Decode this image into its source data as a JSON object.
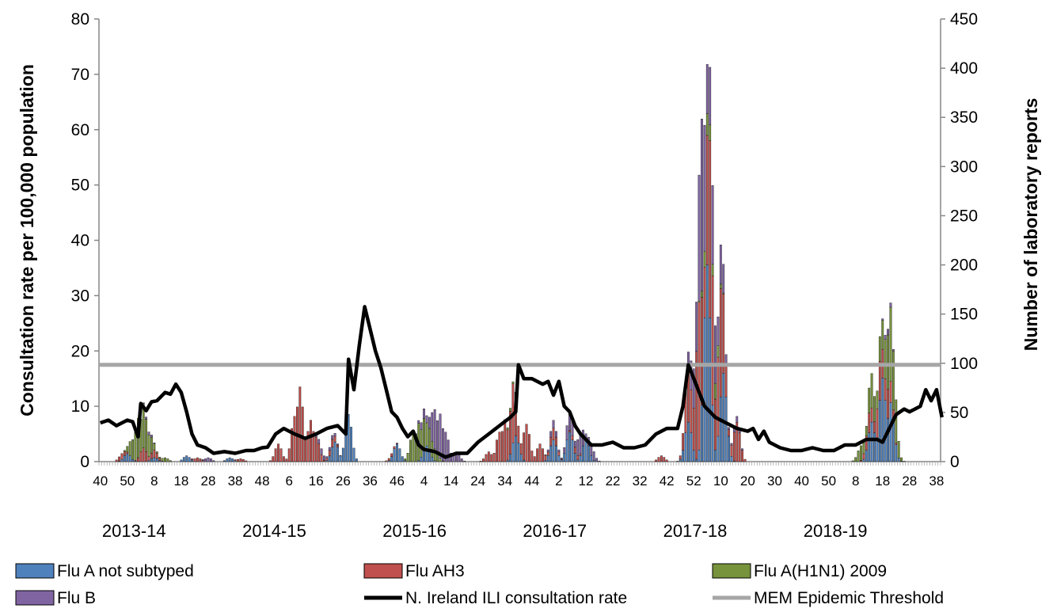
{
  "chart_data": {
    "type": "bar",
    "title": "",
    "ylabel_left": "Consultation rate per 100,000 population",
    "ylabel_right": "Number of laboratory reports",
    "y_left_range": [
      0,
      80
    ],
    "y_left_ticks": [
      "0",
      "10",
      "20",
      "30",
      "40",
      "50",
      "60",
      "70",
      "80"
    ],
    "y_right_range": [
      0,
      450
    ],
    "y_right_ticks": [
      "0",
      "50",
      "100",
      "150",
      "200",
      "250",
      "300",
      "350",
      "400",
      "450"
    ],
    "x_tick_labels": [
      "40",
      "50",
      "8",
      "18",
      "28",
      "38",
      "48",
      "6",
      "16",
      "26",
      "36",
      "46",
      "4",
      "14",
      "24",
      "34",
      "44",
      "2",
      "12",
      "22",
      "32",
      "42",
      "52",
      "10",
      "20",
      "30",
      "40",
      "50",
      "8",
      "18",
      "28",
      "38"
    ],
    "seasons": [
      "2013-14",
      "2014-15",
      "2015-16",
      "2016-17",
      "2017-18",
      "2018-19"
    ],
    "weeks_total": 312,
    "first_week_of_year_index": 13,
    "mem_threshold": 17.5,
    "colors": {
      "flu_a_not_subtyped": "#4f81bd",
      "flu_ah3": "#c0504d",
      "flu_h1n1": "#77933c",
      "flu_b": "#8064a2",
      "ili_rate": "#000000",
      "mem_threshold": "#a6a6a6"
    },
    "series": [
      {
        "name": "Flu A not subtyped",
        "type": "stacked-bar",
        "axis": "right",
        "peaks": [
          [
            10,
            8
          ],
          [
            20,
            4
          ],
          [
            32,
            6
          ],
          [
            48,
            4
          ],
          [
            87,
            20
          ],
          [
            92,
            48
          ],
          [
            110,
            18
          ],
          [
            121,
            16
          ],
          [
            154,
            26
          ],
          [
            168,
            22
          ],
          [
            174,
            30
          ],
          [
            180,
            22
          ],
          [
            218,
            40
          ],
          [
            225,
            200
          ],
          [
            231,
            90
          ],
          [
            286,
            40
          ],
          [
            290,
            85
          ],
          [
            293,
            60
          ]
        ]
      },
      {
        "name": "Flu AH3",
        "type": "stacked-bar",
        "axis": "right",
        "peaks": [
          [
            8,
            6
          ],
          [
            16,
            14
          ],
          [
            20,
            8
          ],
          [
            36,
            4
          ],
          [
            52,
            3
          ],
          [
            66,
            18
          ],
          [
            72,
            46
          ],
          [
            74,
            76
          ],
          [
            78,
            42
          ],
          [
            80,
            25
          ],
          [
            86,
            8
          ],
          [
            108,
            3
          ],
          [
            144,
            10
          ],
          [
            148,
            30
          ],
          [
            150,
            42
          ],
          [
            153,
            60
          ],
          [
            158,
            38
          ],
          [
            163,
            18
          ],
          [
            168,
            12
          ],
          [
            176,
            6
          ],
          [
            208,
            6
          ],
          [
            218,
            60
          ],
          [
            222,
            150
          ],
          [
            226,
            180
          ],
          [
            230,
            110
          ],
          [
            236,
            40
          ],
          [
            285,
            20
          ],
          [
            289,
            40
          ],
          [
            292,
            30
          ]
        ]
      },
      {
        "name": "Flu A(H1N1) 2009",
        "type": "stacked-bar",
        "axis": "right",
        "peaks": [
          [
            12,
            20
          ],
          [
            14,
            40
          ],
          [
            16,
            45
          ],
          [
            18,
            22
          ],
          [
            24,
            4
          ],
          [
            116,
            30
          ],
          [
            118,
            38
          ],
          [
            120,
            32
          ],
          [
            122,
            22
          ],
          [
            124,
            12
          ],
          [
            152,
            3
          ],
          [
            225,
            22
          ],
          [
            228,
            16
          ],
          [
            282,
            15
          ],
          [
            286,
            35
          ],
          [
            289,
            25
          ],
          [
            291,
            40
          ],
          [
            293,
            75
          ],
          [
            294,
            60
          ]
        ]
      },
      {
        "name": "Flu B",
        "type": "stacked-bar",
        "axis": "right",
        "peaks": [
          [
            18,
            3
          ],
          [
            40,
            4
          ],
          [
            82,
            6
          ],
          [
            86,
            4
          ],
          [
            120,
            10
          ],
          [
            124,
            40
          ],
          [
            126,
            45
          ],
          [
            128,
            30
          ],
          [
            132,
            10
          ],
          [
            168,
            8
          ],
          [
            174,
            20
          ],
          [
            178,
            22
          ],
          [
            182,
            12
          ],
          [
            220,
            40
          ],
          [
            223,
            175
          ],
          [
            227,
            80
          ],
          [
            230,
            40
          ],
          [
            236,
            6
          ],
          [
            292,
            6
          ]
        ]
      },
      {
        "name": "N. Ireland ILI consultation rate",
        "type": "line",
        "axis": "left",
        "points": [
          [
            0,
            7
          ],
          [
            3,
            7.5
          ],
          [
            6,
            6.5
          ],
          [
            10,
            7.5
          ],
          [
            12,
            7.2
          ],
          [
            14,
            4.5
          ],
          [
            15,
            10.5
          ],
          [
            17,
            9.2
          ],
          [
            19,
            10.8
          ],
          [
            21,
            11
          ],
          [
            24,
            12.5
          ],
          [
            26,
            12.2
          ],
          [
            28,
            14
          ],
          [
            30,
            12.5
          ],
          [
            32,
            9
          ],
          [
            34,
            5
          ],
          [
            36,
            3
          ],
          [
            39,
            2.5
          ],
          [
            42,
            1.5
          ],
          [
            46,
            1.8
          ],
          [
            50,
            1.5
          ],
          [
            54,
            2
          ],
          [
            57,
            2
          ],
          [
            60,
            2.5
          ],
          [
            62,
            2.6
          ],
          [
            65,
            5
          ],
          [
            68,
            6
          ],
          [
            72,
            5
          ],
          [
            76,
            4.2
          ],
          [
            80,
            5
          ],
          [
            84,
            6
          ],
          [
            88,
            6.5
          ],
          [
            91,
            5
          ],
          [
            92,
            18.5
          ],
          [
            94,
            13
          ],
          [
            96,
            21
          ],
          [
            98,
            28
          ],
          [
            100,
            24
          ],
          [
            102,
            20
          ],
          [
            104,
            17
          ],
          [
            106,
            13
          ],
          [
            108,
            9
          ],
          [
            110,
            8
          ],
          [
            112,
            6
          ],
          [
            114,
            4.5
          ],
          [
            116,
            5.5
          ],
          [
            118,
            3
          ],
          [
            120,
            2.2
          ],
          [
            124,
            1.8
          ],
          [
            128,
            0.8
          ],
          [
            132,
            1.5
          ],
          [
            136,
            1.5
          ],
          [
            140,
            3.5
          ],
          [
            144,
            5
          ],
          [
            148,
            6.5
          ],
          [
            152,
            8
          ],
          [
            154,
            9
          ],
          [
            155,
            17.5
          ],
          [
            157,
            15
          ],
          [
            160,
            15
          ],
          [
            164,
            14
          ],
          [
            166,
            14.5
          ],
          [
            168,
            12
          ],
          [
            170,
            14.5
          ],
          [
            172,
            10
          ],
          [
            174,
            9
          ],
          [
            176,
            6.5
          ],
          [
            178,
            5
          ],
          [
            182,
            3
          ],
          [
            186,
            3
          ],
          [
            190,
            3.5
          ],
          [
            194,
            2.5
          ],
          [
            198,
            2.5
          ],
          [
            202,
            3
          ],
          [
            206,
            5
          ],
          [
            210,
            6
          ],
          [
            214,
            6
          ],
          [
            216,
            10
          ],
          [
            218,
            17.5
          ],
          [
            220,
            15
          ],
          [
            224,
            10
          ],
          [
            228,
            8
          ],
          [
            232,
            7
          ],
          [
            236,
            6
          ],
          [
            240,
            5.5
          ],
          [
            242,
            6
          ],
          [
            244,
            4
          ],
          [
            246,
            5.5
          ],
          [
            248,
            3.5
          ],
          [
            252,
            2.5
          ],
          [
            256,
            2
          ],
          [
            260,
            2
          ],
          [
            264,
            2.5
          ],
          [
            268,
            2
          ],
          [
            272,
            2
          ],
          [
            276,
            3
          ],
          [
            280,
            3
          ],
          [
            284,
            4
          ],
          [
            288,
            4
          ],
          [
            290,
            3.5
          ],
          [
            292,
            5.5
          ],
          [
            295,
            8.5
          ],
          [
            298,
            9.5
          ],
          [
            300,
            9
          ],
          [
            302,
            9.5
          ],
          [
            304,
            10
          ],
          [
            306,
            13
          ],
          [
            308,
            11
          ],
          [
            310,
            13
          ],
          [
            312,
            8
          ]
        ]
      },
      {
        "name": "MEM Epidemic Threshold",
        "type": "line",
        "axis": "left"
      }
    ]
  },
  "legend": [
    {
      "label": "Flu A not subtyped",
      "kind": "box",
      "color": "#4f81bd"
    },
    {
      "label": "Flu AH3",
      "kind": "box",
      "color": "#c0504d"
    },
    {
      "label": "Flu A(H1N1) 2009",
      "kind": "box",
      "color": "#77933c"
    },
    {
      "label": "Flu B",
      "kind": "box",
      "color": "#8064a2"
    },
    {
      "label": "N. Ireland ILI consultation rate",
      "kind": "line",
      "color": "#000000"
    },
    {
      "label": "MEM Epidemic Threshold",
      "kind": "line",
      "color": "#a6a6a6"
    }
  ]
}
